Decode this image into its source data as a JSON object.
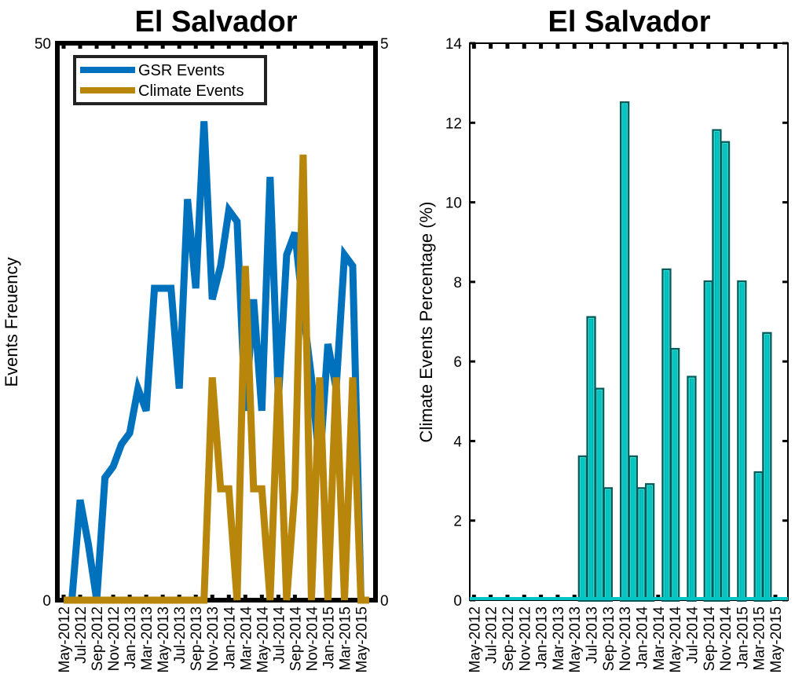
{
  "chart_data": [
    {
      "type": "line",
      "title": "El Salvador",
      "ylabel": "Events Freuency",
      "ylim": [
        0,
        50
      ],
      "yticks": [
        0,
        50
      ],
      "y2lim": [
        0,
        5
      ],
      "y2ticks": [
        0,
        5
      ],
      "xtick_labels": [
        "May-2012",
        "Jul-2012",
        "Sep-2012",
        "Nov-2012",
        "Jan-2013",
        "Mar-2013",
        "May-2013",
        "Jul-2013",
        "Sep-2013",
        "Nov-2013",
        "Jan-2014",
        "Mar-2014",
        "May-2014",
        "Jul-2014",
        "Sep-2014",
        "Nov-2014",
        "Jan-2015",
        "Mar-2015",
        "May-2015"
      ],
      "legend_position": "top-left",
      "colors": {
        "gsr": "#0072bd",
        "climate": "#b8860b"
      },
      "series": [
        {
          "name": "GSR Events",
          "axis": "left",
          "values": [
            0,
            0,
            9,
            5,
            0,
            11,
            12,
            14,
            15,
            19,
            17,
            28,
            28,
            28,
            19,
            36,
            28,
            43,
            27,
            30,
            35,
            34,
            17,
            27,
            17,
            38,
            18,
            31,
            33,
            26,
            20,
            12,
            23,
            19,
            31,
            30,
            0,
            0
          ]
        },
        {
          "name": "Climate Events",
          "axis": "right",
          "values": [
            0,
            0,
            0,
            0,
            0,
            0,
            0,
            0,
            0,
            0,
            0,
            0,
            0,
            0,
            0,
            0,
            0,
            0,
            2,
            1,
            1,
            0,
            3,
            1,
            1,
            0,
            2,
            0,
            1,
            4,
            0,
            2,
            0,
            2,
            0,
            2,
            0,
            0
          ]
        }
      ]
    },
    {
      "type": "bar",
      "title": "El Salvador",
      "ylabel": "Climate Events Percentage (%)",
      "ylim": [
        0,
        14
      ],
      "yticks": [
        0,
        2,
        4,
        6,
        8,
        10,
        12,
        14
      ],
      "xtick_labels": [
        "May-2012",
        "Jul-2012",
        "Sep-2012",
        "Nov-2012",
        "Jan-2013",
        "Mar-2013",
        "May-2013",
        "Jul-2013",
        "Sep-2013",
        "Nov-2013",
        "Jan-2014",
        "Mar-2014",
        "May-2014",
        "Jul-2014",
        "Sep-2014",
        "Nov-2014",
        "Jan-2015",
        "Mar-2015",
        "May-2015"
      ],
      "colors": {
        "bar": "#00c5c5",
        "edge": "#2de0d8",
        "line": "#0a5a5a"
      },
      "values": [
        0,
        0,
        0,
        0,
        0,
        0,
        0,
        0,
        0,
        0,
        0,
        0,
        0,
        3.6,
        7.1,
        5.3,
        2.8,
        0,
        12.5,
        3.6,
        2.8,
        2.9,
        0,
        8.3,
        6.3,
        0,
        5.6,
        0,
        8,
        11.8,
        11.5,
        0,
        8,
        0,
        3.2,
        6.7,
        0,
        0
      ]
    }
  ]
}
